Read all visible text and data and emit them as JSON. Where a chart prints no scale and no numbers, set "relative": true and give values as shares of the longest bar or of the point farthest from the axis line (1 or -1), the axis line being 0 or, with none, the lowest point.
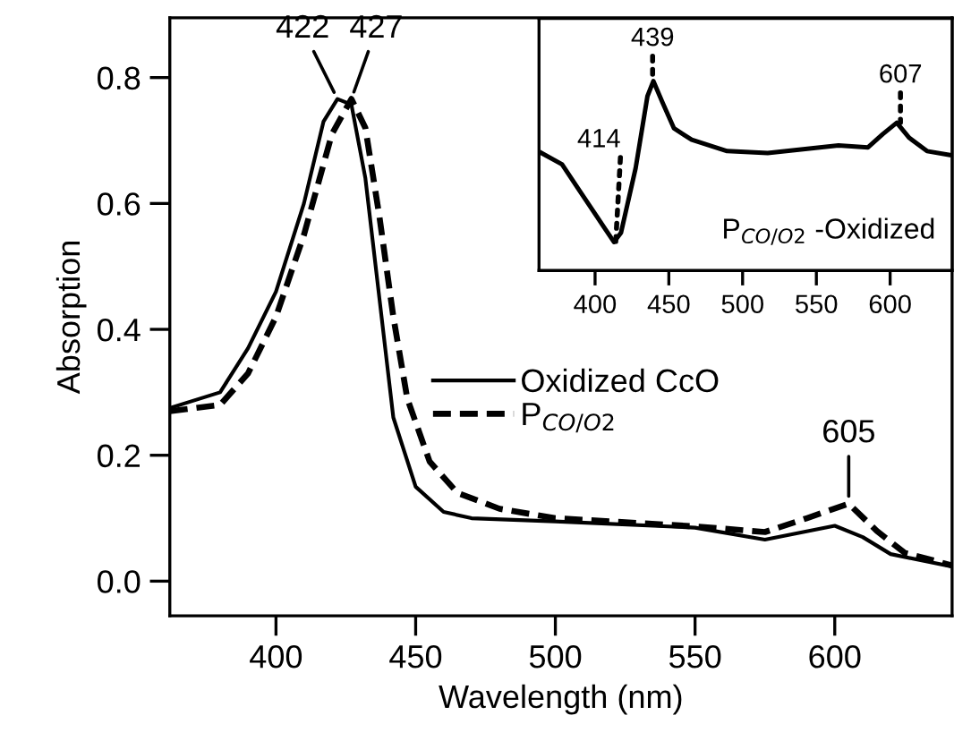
{
  "chart_data": [
    {
      "type": "line",
      "xlabel": "Wavelength (nm)",
      "ylabel": "Absorption",
      "xlim": [
        362,
        642
      ],
      "xticks": [
        400,
        450,
        500,
        550,
        600
      ],
      "ylim": [
        -0.055,
        0.895
      ],
      "yticks": [
        {
          "value": 0,
          "label": "0.0"
        },
        {
          "value": 0.2,
          "label": "0.2"
        },
        {
          "value": 0.4,
          "label": "0.4"
        },
        {
          "value": 0.6,
          "label": "0.6"
        },
        {
          "value": 0.8,
          "label": "0.8"
        }
      ],
      "legend": "right",
      "grid": false,
      "series": [
        {
          "name": "Oxidized CcO",
          "color": "#000000",
          "line_style": "solid",
          "x": [
            362,
            380,
            390,
            400,
            410,
            417,
            422,
            427,
            432,
            437,
            442,
            450,
            460,
            470,
            500,
            550,
            575,
            600,
            610,
            620,
            642
          ],
          "values": [
            0.275,
            0.3,
            0.37,
            0.46,
            0.6,
            0.73,
            0.766,
            0.757,
            0.64,
            0.45,
            0.26,
            0.15,
            0.11,
            0.1,
            0.095,
            0.085,
            0.066,
            0.088,
            0.07,
            0.043,
            0.023
          ]
        },
        {
          "name": "P$_{CO/O2}$",
          "color": "#000000",
          "line_style": "dashed",
          "x": [
            362,
            380,
            390,
            400,
            410,
            420,
            427,
            432,
            437,
            442,
            447,
            455,
            465,
            480,
            500,
            550,
            575,
            590,
            605,
            615,
            625,
            642
          ],
          "values": [
            0.27,
            0.28,
            0.33,
            0.42,
            0.55,
            0.71,
            0.766,
            0.72,
            0.58,
            0.42,
            0.29,
            0.19,
            0.14,
            0.115,
            0.1,
            0.087,
            0.078,
            0.1,
            0.123,
            0.08,
            0.045,
            0.025
          ]
        }
      ],
      "annotations": [
        {
          "text": "422",
          "x": 422,
          "y": 0.766
        },
        {
          "text": "427",
          "x": 427,
          "y": 0.766
        },
        {
          "text": "605",
          "x": 605,
          "y": 0.123
        }
      ]
    },
    {
      "type": "line",
      "relative": true,
      "xlim": [
        362,
        642
      ],
      "xticks": [
        400,
        450,
        500,
        550,
        600
      ],
      "tick_labels": "x",
      "grid": false,
      "series": [
        {
          "color": "#000000",
          "line_style": "solid",
          "x": [
            363.7,
            377.6,
            389.6,
            401.6,
            412.8,
            417.6,
            427.5,
            435.5,
            439.5,
            445.5,
            453.5,
            465.5,
            489.5,
            517,
            541,
            565,
            585,
            595,
            604.5,
            613,
            625,
            640
          ],
          "values": [
            0.62,
            0.56,
            0.42,
            0.28,
            0.15,
            0.2,
            0.54,
            0.92,
            1.0,
            0.89,
            0.75,
            0.69,
            0.63,
            0.62,
            0.64,
            0.66,
            0.65,
            0.72,
            0.78,
            0.7,
            0.63,
            0.61
          ]
        }
      ],
      "annotations": [
        {
          "text": "414",
          "x": 414,
          "y": 0.15
        },
        {
          "text": "439",
          "x": 439,
          "y": 1.0
        },
        {
          "text": "607",
          "x": 607,
          "y": 0.78
        },
        "P$_{CO/O2}$ -Oxidized"
      ]
    }
  ]
}
